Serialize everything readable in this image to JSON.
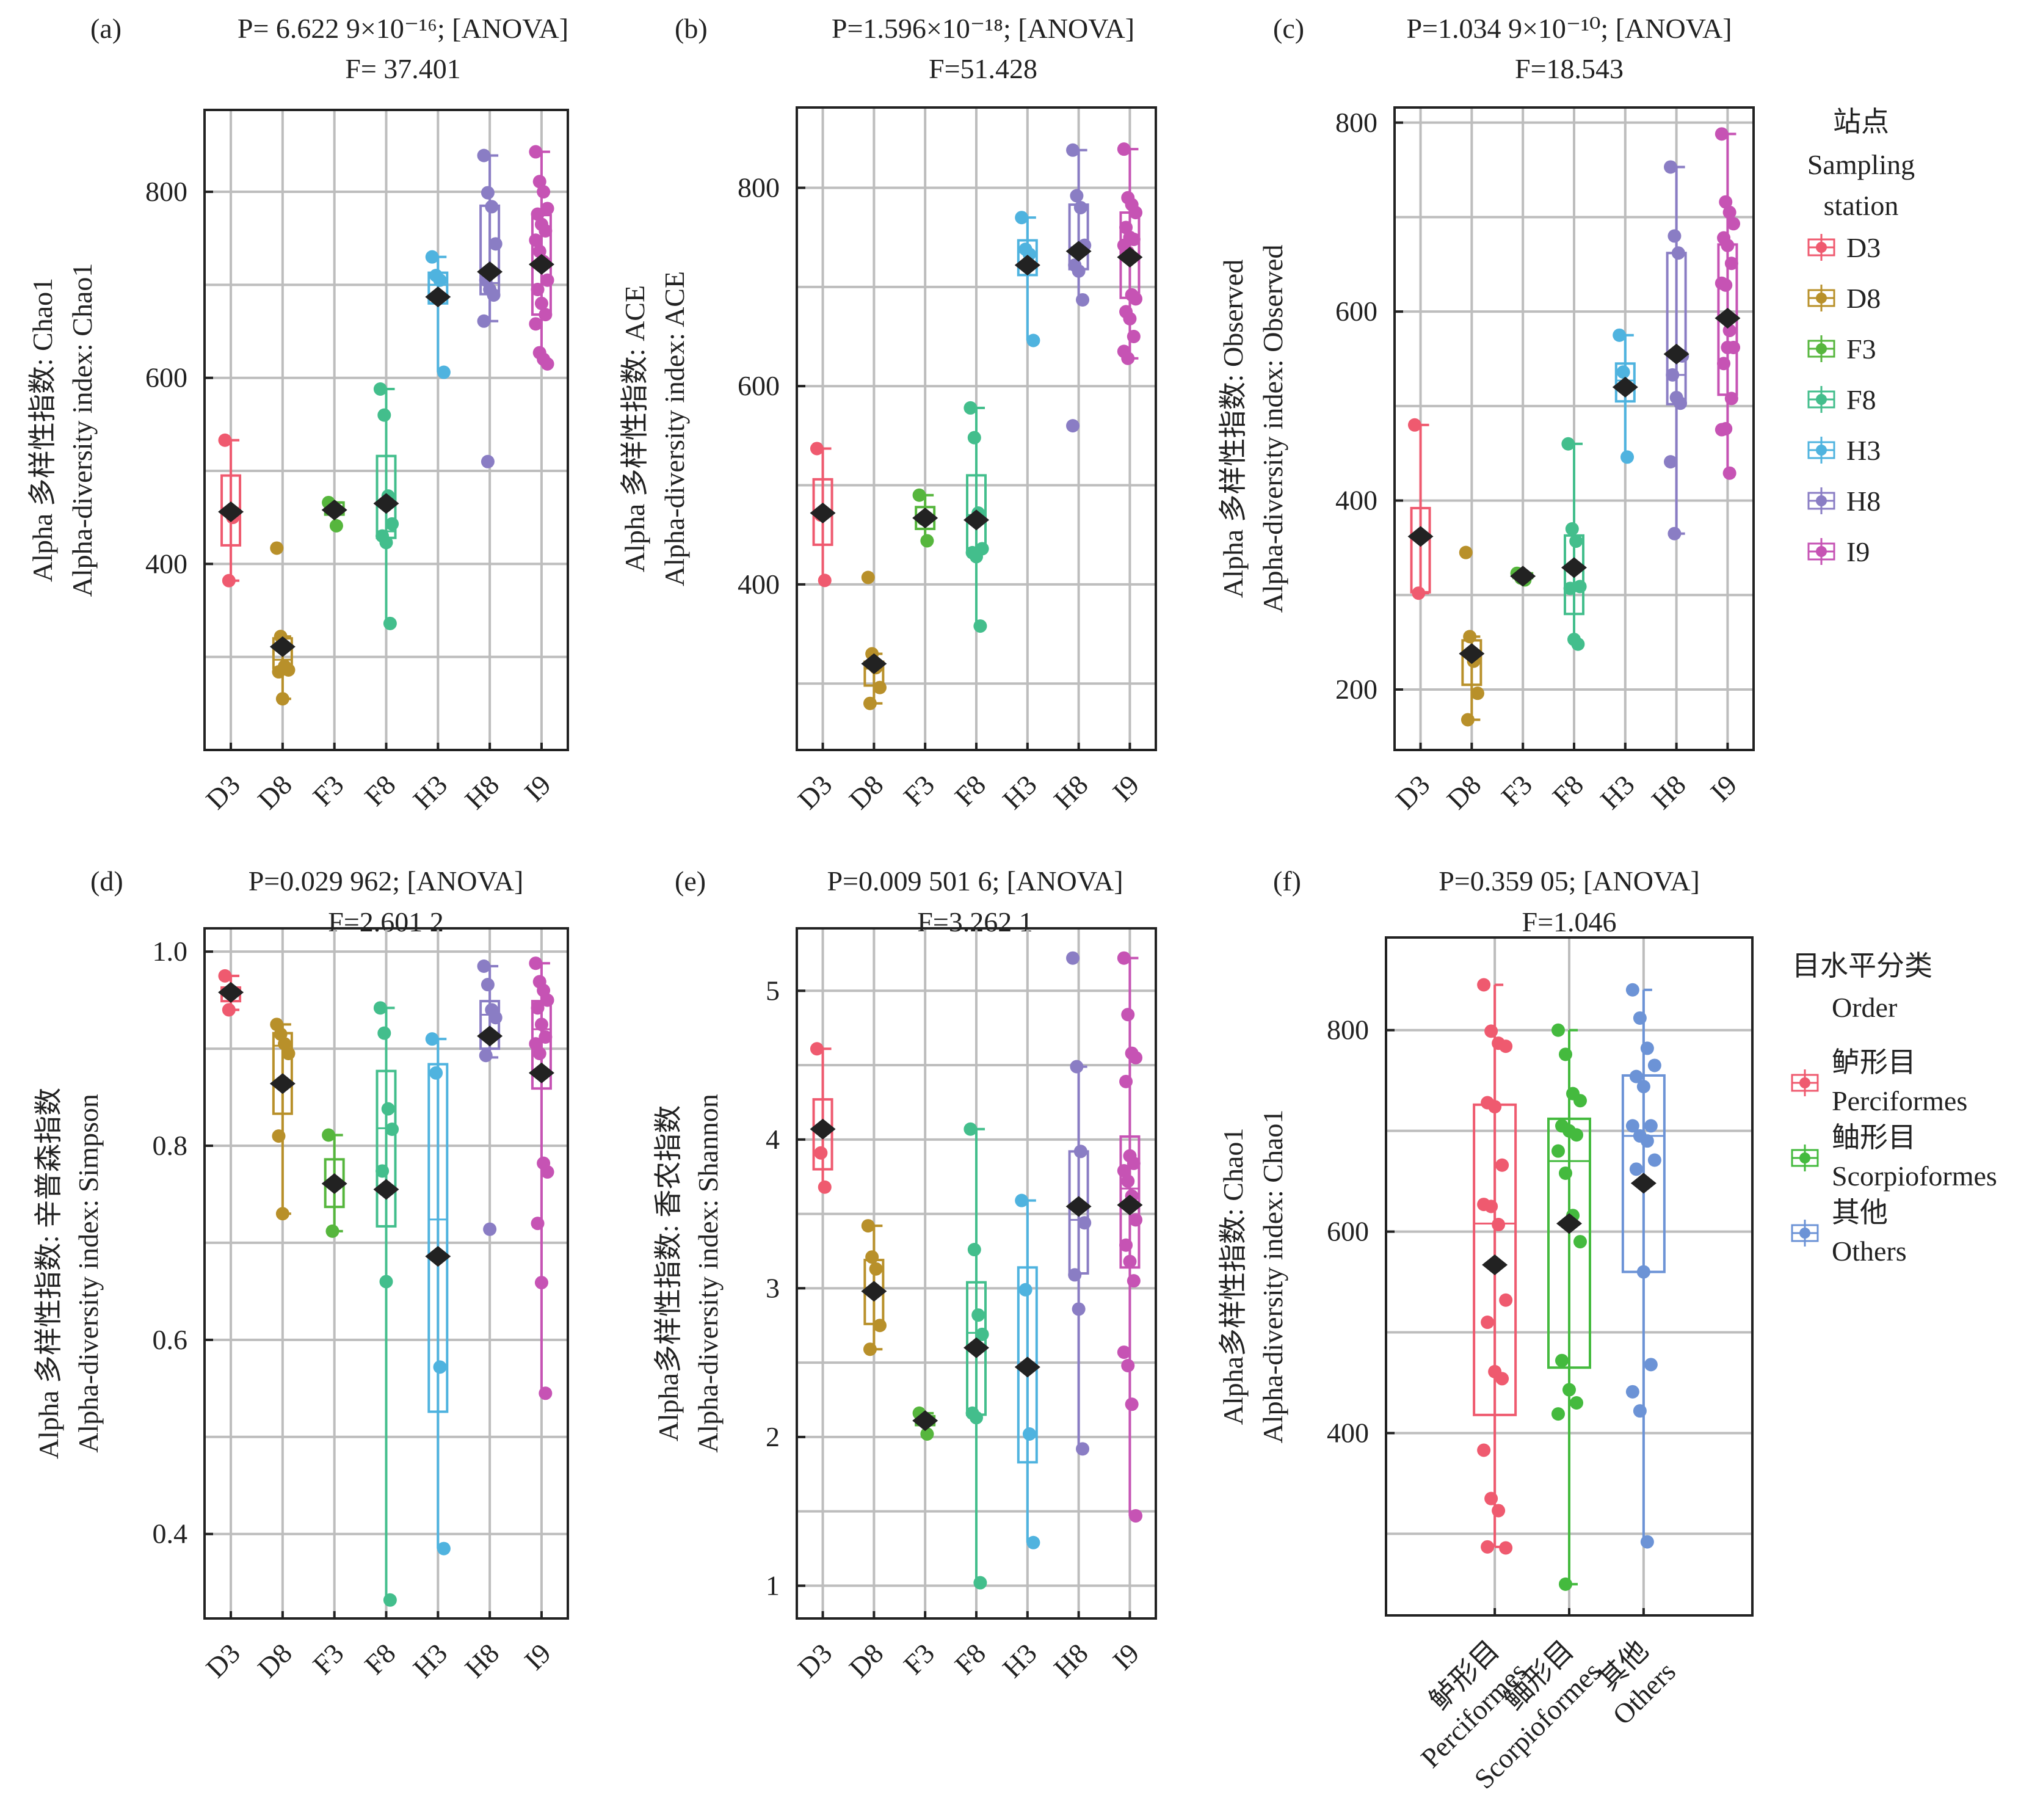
{
  "figure": {
    "stations": [
      "D3",
      "D8",
      "F3",
      "F8",
      "H3",
      "H8",
      "I9"
    ],
    "station_colors": {
      "D3": "#EF5A6F",
      "D8": "#B8902A",
      "F3": "#56B63D",
      "F8": "#43BE8C",
      "H3": "#4FB3DF",
      "H8": "#8A7DC4",
      "I9": "#C653B4"
    },
    "order_colors": {
      "Perciformes": "#EF5A6F",
      "Scorpioformes": "#44BA3E",
      "Others": "#6C93D6"
    },
    "legend_station": {
      "title_cn": "站点",
      "title_en_1": "Sampling",
      "title_en_2": "station",
      "items": [
        "D3",
        "D8",
        "F3",
        "F8",
        "H3",
        "H8",
        "I9"
      ]
    },
    "legend_order": {
      "title_cn": "目水平分类",
      "title_en": "Order",
      "items": [
        {
          "cn": "鲈形目",
          "en": "Perciformes"
        },
        {
          "cn": "鲉形目",
          "en": "Scorpioformes"
        },
        {
          "cn": "其他",
          "en": "Others"
        }
      ]
    }
  },
  "chart_data": [
    {
      "panel": "(a)",
      "type": "box",
      "title_line1": "P= 6.622 9×10⁻¹⁶; [ANOVA]",
      "title_line2": "F= 37.401",
      "ylabel_cn": "Alpha 多样性指数: Chao1",
      "ylabel_en": "Alpha-diversity index: Chao1",
      "ylim": [
        200,
        888
      ],
      "yticks": [
        400,
        600,
        800
      ],
      "grid_minor": [
        300,
        500,
        700
      ],
      "categories": [
        "D3",
        "D8",
        "F3",
        "F8",
        "H3",
        "H8",
        "I9"
      ],
      "boxes": [
        {
          "q1": 420,
          "median": 460,
          "q3": 495,
          "lo": 382,
          "hi": 533,
          "mean": 456,
          "points": [
            533,
            382,
            450
          ]
        },
        {
          "q1": 288,
          "median": 297,
          "q3": 320,
          "lo": 255,
          "hi": 322,
          "mean": 311,
          "points": [
            417,
            322,
            290,
            286,
            284,
            255
          ]
        },
        {
          "q1": 453,
          "median": 458,
          "q3": 466,
          "lo": 441,
          "hi": 466,
          "mean": 458,
          "points": [
            466,
            462,
            441
          ]
        },
        {
          "q1": 428,
          "median": 435,
          "q3": 516,
          "lo": 336,
          "hi": 588,
          "mean": 465,
          "points": [
            588,
            560,
            473,
            443,
            430,
            423,
            336
          ]
        },
        {
          "q1": 680,
          "median": 700,
          "q3": 713,
          "lo": 606,
          "hi": 730,
          "mean": 687,
          "points": [
            730,
            710,
            705,
            606
          ]
        },
        {
          "q1": 690,
          "median": 702,
          "q3": 785,
          "lo": 661,
          "hi": 839,
          "mean": 714,
          "points": [
            839,
            799,
            784,
            744,
            705,
            695,
            689,
            661,
            510
          ]
        },
        {
          "q1": 668,
          "median": 720,
          "q3": 775,
          "lo": 615,
          "hi": 843,
          "mean": 722,
          "points": [
            843,
            811,
            800,
            782,
            776,
            765,
            758,
            748,
            736,
            725,
            705,
            695,
            680,
            668,
            658,
            627,
            620,
            615
          ]
        }
      ]
    },
    {
      "panel": "(b)",
      "type": "box",
      "title_line1": "P=1.596×10⁻¹⁸; [ANOVA]",
      "title_line2": "F=51.428",
      "ylabel_cn": "Alpha 多样性指数: ACE",
      "ylabel_en": "Alpha-diversity index: ACE",
      "ylim": [
        233,
        881
      ],
      "yticks": [
        400,
        600,
        800
      ],
      "grid_minor": [
        300,
        500,
        700
      ],
      "categories": [
        "D3",
        "D8",
        "F3",
        "F8",
        "H3",
        "H8",
        "I9"
      ],
      "boxes": [
        {
          "q1": 440,
          "median": 470,
          "q3": 506,
          "lo": 404,
          "hi": 537,
          "mean": 472,
          "points": [
            537,
            470,
            404
          ]
        },
        {
          "q1": 298,
          "median": 315,
          "q3": 322,
          "lo": 280,
          "hi": 330,
          "mean": 320,
          "points": [
            407,
            330,
            316,
            296,
            280
          ]
        },
        {
          "q1": 456,
          "median": 468,
          "q3": 478,
          "lo": 444,
          "hi": 490,
          "mean": 467,
          "points": [
            490,
            466,
            444
          ]
        },
        {
          "q1": 434,
          "median": 470,
          "q3": 510,
          "lo": 358,
          "hi": 578,
          "mean": 465,
          "points": [
            578,
            548,
            472,
            436,
            432,
            428,
            358
          ]
        },
        {
          "q1": 712,
          "median": 735,
          "q3": 747,
          "lo": 646,
          "hi": 770,
          "mean": 722,
          "points": [
            770,
            738,
            733,
            646
          ]
        },
        {
          "q1": 718,
          "median": 740,
          "q3": 783,
          "lo": 687,
          "hi": 838,
          "mean": 736,
          "points": [
            838,
            792,
            780,
            742,
            722,
            716,
            687,
            560
          ]
        },
        {
          "q1": 689,
          "median": 730,
          "q3": 775,
          "lo": 628,
          "hi": 839,
          "mean": 730,
          "points": [
            839,
            790,
            783,
            775,
            760,
            750,
            748,
            742,
            735,
            692,
            688,
            675,
            668,
            650,
            635,
            628
          ]
        }
      ]
    },
    {
      "panel": "(c)",
      "type": "box",
      "title_line1": "P=1.034 9×10⁻¹⁰; [ANOVA]",
      "title_line2": "F=18.543",
      "ylabel_cn": "Alpha 多样性指数: Observed",
      "ylabel_en": "Alpha-diversity index: Observed",
      "ylim": [
        136,
        816
      ],
      "yticks": [
        200,
        400,
        600,
        800
      ],
      "grid_minor": [
        300,
        500,
        700
      ],
      "categories": [
        "D3",
        "D8",
        "F3",
        "F8",
        "H3",
        "H8",
        "I9"
      ],
      "boxes": [
        {
          "q1": 303,
          "median": 360,
          "q3": 392,
          "lo": 302,
          "hi": 480,
          "mean": 362,
          "points": [
            480,
            302
          ]
        },
        {
          "q1": 205,
          "median": 235,
          "q3": 252,
          "lo": 168,
          "hi": 256,
          "mean": 238,
          "points": [
            345,
            256,
            230,
            196,
            168
          ]
        },
        {
          "q1": 318,
          "median": 321,
          "q3": 323,
          "lo": 316,
          "hi": 323,
          "mean": 320,
          "points": [
            323,
            318,
            316
          ]
        },
        {
          "q1": 280,
          "median": 310,
          "q3": 363,
          "lo": 248,
          "hi": 460,
          "mean": 329,
          "points": [
            460,
            370,
            357,
            309,
            307,
            253,
            248
          ]
        },
        {
          "q1": 505,
          "median": 527,
          "q3": 545,
          "lo": 446,
          "hi": 575,
          "mean": 520,
          "points": [
            575,
            536,
            446
          ]
        },
        {
          "q1": 502,
          "median": 533,
          "q3": 662,
          "lo": 365,
          "hi": 753,
          "mean": 555,
          "points": [
            753,
            680,
            662,
            553,
            533,
            509,
            503,
            441,
            365
          ]
        },
        {
          "q1": 512,
          "median": 592,
          "q3": 671,
          "lo": 429,
          "hi": 788,
          "mean": 593,
          "points": [
            788,
            716,
            705,
            693,
            678,
            670,
            651,
            630,
            628,
            580,
            562,
            545,
            562,
            508,
            475,
            476,
            429
          ]
        }
      ]
    },
    {
      "panel": "(d)",
      "type": "box",
      "title_line1": "P=0.029 962; [ANOVA]",
      "title_line2": "F=2.601 2",
      "ylabel_cn": "Alpha 多样性指数: 辛普森指数",
      "ylabel_en": "Alpha-diversity index: Simpson",
      "ylim": [
        0.313,
        1.024
      ],
      "yticks": [
        0.4,
        0.6,
        0.8,
        1.0
      ],
      "grid_minor": [
        0.5,
        0.7,
        0.9
      ],
      "categories": [
        "D3",
        "D8",
        "F3",
        "F8",
        "H3",
        "H8",
        "I9"
      ],
      "boxes": [
        {
          "q1": 0.949,
          "median": 0.958,
          "q3": 0.963,
          "lo": 0.94,
          "hi": 0.975,
          "mean": 0.958,
          "points": [
            0.975,
            0.94
          ]
        },
        {
          "q1": 0.833,
          "median": 0.903,
          "q3": 0.916,
          "lo": 0.73,
          "hi": 0.925,
          "mean": 0.864,
          "points": [
            0.925,
            0.915,
            0.905,
            0.895,
            0.81,
            0.73
          ]
        },
        {
          "q1": 0.737,
          "median": 0.76,
          "q3": 0.786,
          "lo": 0.712,
          "hi": 0.811,
          "mean": 0.761,
          "points": [
            0.811,
            0.712
          ]
        },
        {
          "q1": 0.717,
          "median": 0.818,
          "q3": 0.877,
          "lo": 0.332,
          "hi": 0.942,
          "mean": 0.755,
          "points": [
            0.942,
            0.916,
            0.838,
            0.817,
            0.774,
            0.66,
            0.332
          ]
        },
        {
          "q1": 0.526,
          "median": 0.724,
          "q3": 0.884,
          "lo": 0.385,
          "hi": 0.91,
          "mean": 0.686,
          "points": [
            0.91,
            0.875,
            0.572,
            0.385
          ]
        },
        {
          "q1": 0.9,
          "median": 0.935,
          "q3": 0.949,
          "lo": 0.891,
          "hi": 0.985,
          "mean": 0.913,
          "points": [
            0.985,
            0.966,
            0.94,
            0.932,
            0.893,
            0.714
          ]
        },
        {
          "q1": 0.859,
          "median": 0.92,
          "q3": 0.949,
          "lo": 0.545,
          "hi": 0.988,
          "mean": 0.875,
          "points": [
            0.988,
            0.969,
            0.96,
            0.95,
            0.942,
            0.925,
            0.912,
            0.905,
            0.895,
            0.782,
            0.773,
            0.72,
            0.659,
            0.545
          ]
        }
      ]
    },
    {
      "panel": "(e)",
      "type": "box",
      "title_line1": "P=0.009 501 6; [ANOVA]",
      "title_line2": "F=3.262 1",
      "ylabel_cn": "Alpha多样性指数: 香农指数",
      "ylabel_en": "Alpha-diversity index: Shannon",
      "ylim": [
        0.78,
        5.42
      ],
      "yticks": [
        1,
        2,
        3,
        4,
        5
      ],
      "grid_minor": [
        1.5,
        2.5,
        3.5,
        4.5
      ],
      "categories": [
        "D3",
        "D8",
        "F3",
        "F8",
        "H3",
        "H8",
        "I9"
      ],
      "boxes": [
        {
          "q1": 3.8,
          "median": 4.05,
          "q3": 4.27,
          "lo": 3.68,
          "hi": 4.61,
          "mean": 4.07,
          "points": [
            4.61,
            3.91,
            3.68
          ]
        },
        {
          "q1": 2.76,
          "median": 2.98,
          "q3": 3.19,
          "lo": 2.59,
          "hi": 3.42,
          "mean": 2.98,
          "points": [
            3.42,
            3.21,
            3.13,
            2.75,
            2.59
          ]
        },
        {
          "q1": 2.08,
          "median": 2.11,
          "q3": 2.14,
          "lo": 2.02,
          "hi": 2.16,
          "mean": 2.11,
          "points": [
            2.16,
            2.13,
            2.02
          ]
        },
        {
          "q1": 2.15,
          "median": 2.7,
          "q3": 3.04,
          "lo": 1.02,
          "hi": 4.07,
          "mean": 2.6,
          "points": [
            4.07,
            3.26,
            2.82,
            2.69,
            2.16,
            2.13,
            1.02
          ]
        },
        {
          "q1": 1.83,
          "median": 2.47,
          "q3": 3.14,
          "lo": 1.29,
          "hi": 3.59,
          "mean": 2.47,
          "points": [
            3.59,
            2.99,
            2.02,
            1.29
          ]
        },
        {
          "q1": 3.1,
          "median": 3.46,
          "q3": 3.92,
          "lo": 1.92,
          "hi": 4.49,
          "mean": 3.55,
          "points": [
            5.22,
            4.49,
            3.92,
            3.44,
            3.09,
            2.86,
            1.92
          ]
        },
        {
          "q1": 3.14,
          "median": 3.67,
          "q3": 4.02,
          "lo": 1.47,
          "hi": 5.22,
          "mean": 3.56,
          "points": [
            5.22,
            4.84,
            4.58,
            4.55,
            4.39,
            3.89,
            3.84,
            3.79,
            3.72,
            3.62,
            3.46,
            3.29,
            3.18,
            3.05,
            2.57,
            2.48,
            2.22,
            1.47
          ]
        }
      ]
    },
    {
      "panel": "(f)",
      "type": "box",
      "title_line1": "P=0.359 05; [ANOVA]",
      "title_line2": "F=1.046",
      "ylabel_cn": "Alpha多样性指数: Chao1",
      "ylabel_en": "Alpha-diversity index: Chao1",
      "ylim": [
        219,
        892
      ],
      "yticks": [
        400,
        600,
        800
      ],
      "grid_minor": [
        300,
        500,
        700
      ],
      "categories": [
        "Perciformes",
        "Scorpioformes",
        "Others"
      ],
      "category_labels_cn": [
        "鲈形目",
        "鲉形目",
        "其他"
      ],
      "boxes": [
        {
          "q1": 418,
          "median": 608,
          "q3": 726,
          "lo": 287,
          "hi": 845,
          "mean": 567,
          "points": [
            845,
            799,
            787,
            784,
            728,
            724,
            666,
            627,
            625,
            607,
            532,
            510,
            461,
            454,
            383,
            335,
            323,
            286,
            287
          ]
        },
        {
          "q1": 465,
          "median": 670,
          "q3": 712,
          "lo": 250,
          "hi": 800,
          "mean": 608,
          "points": [
            800,
            776,
            737,
            730,
            705,
            700,
            696,
            680,
            658,
            616,
            590,
            472,
            443,
            430,
            419,
            250
          ]
        },
        {
          "q1": 560,
          "median": 695,
          "q3": 755,
          "lo": 292,
          "hi": 840,
          "mean": 648,
          "points": [
            840,
            812,
            782,
            765,
            754,
            744,
            705,
            705,
            695,
            690,
            671,
            662,
            560,
            468,
            441,
            422,
            292
          ]
        }
      ]
    }
  ]
}
